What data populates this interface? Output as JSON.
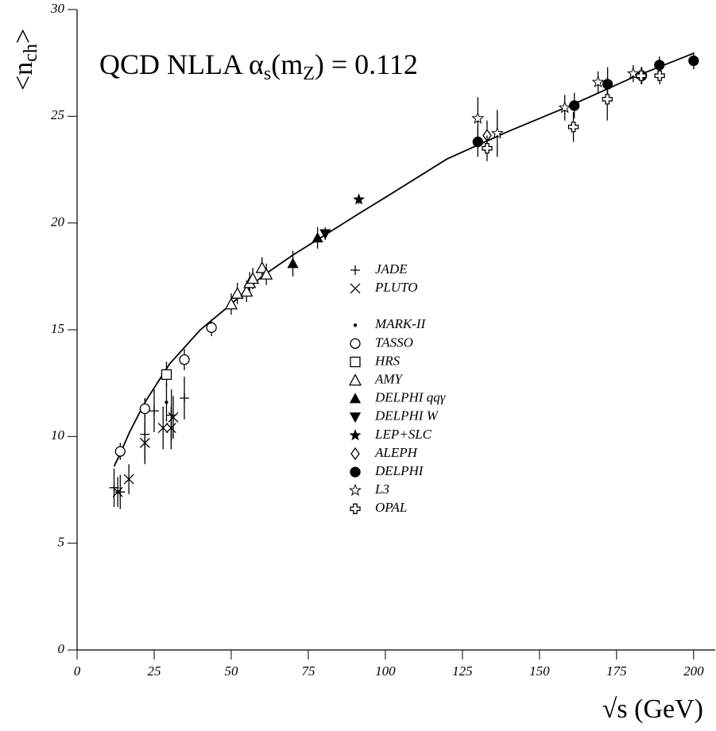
{
  "chart_data": {
    "type": "scatter",
    "annotation": [
      "QCD NLLA α",
      "s",
      "(m",
      "Z",
      ") = 0.112"
    ],
    "y_label": [
      "<n",
      "ch",
      ">"
    ],
    "x_label": "√s (GeV)",
    "xlim": [
      0,
      207
    ],
    "ylim": [
      0,
      30
    ],
    "xticks": [
      0,
      25,
      50,
      75,
      100,
      125,
      150,
      175,
      200
    ],
    "yticks": [
      0,
      5,
      10,
      15,
      20,
      25,
      30
    ],
    "color": "#000000",
    "fit": {
      "x": [
        12,
        14,
        17,
        22,
        30,
        40,
        50,
        60,
        70,
        80,
        91,
        100,
        120,
        140,
        160,
        180,
        200
      ],
      "values": [
        8.6,
        9.2,
        10.2,
        11.6,
        13.4,
        15.0,
        16.2,
        17.5,
        18.5,
        19.4,
        20.4,
        21.2,
        23.0,
        24.3,
        25.5,
        26.8,
        27.95
      ]
    },
    "series": [
      {
        "name": "JADE",
        "marker": "plus",
        "x": [
          12,
          14,
          22,
          25,
          30.6,
          34.8
        ],
        "values": [
          7.6,
          7.4,
          10.1,
          11.2,
          11.0,
          11.8
        ],
        "errors": [
          0.9,
          0.8,
          1.2,
          1.0,
          1.2,
          1.0
        ]
      },
      {
        "name": "PLUTO",
        "marker": "cross",
        "x": [
          13.2,
          16.8,
          22,
          27.9,
          30.5,
          31.2
        ],
        "values": [
          7.4,
          8.0,
          9.7,
          10.4,
          10.4,
          10.9
        ],
        "errors": [
          0.7,
          0.7,
          1.0,
          1.0,
          1.0,
          1.0
        ]
      },
      {
        "name": "MARK-II",
        "marker": "dot",
        "x": [
          29
        ],
        "values": [
          11.6
        ],
        "errors": [
          0.9
        ]
      },
      {
        "name": "TASSO",
        "marker": "circle",
        "x": [
          14,
          22,
          34.8,
          43.6
        ],
        "values": [
          9.3,
          11.3,
          13.6,
          15.1
        ],
        "errors": [
          0.4,
          0.5,
          0.5,
          0.4
        ]
      },
      {
        "name": "HRS",
        "marker": "square",
        "x": [
          29
        ],
        "values": [
          12.9
        ],
        "errors": [
          0.6
        ]
      },
      {
        "name": "AMY",
        "marker": "triangle",
        "x": [
          50,
          52,
          55,
          56,
          57,
          60,
          61.4
        ],
        "values": [
          16.2,
          16.7,
          16.8,
          17.2,
          17.4,
          17.9,
          17.6
        ],
        "errors": [
          0.5,
          0.5,
          0.5,
          0.5,
          0.5,
          0.5,
          0.5
        ]
      },
      {
        "name": "DELPHI qqγ",
        "marker": "triangle-filled",
        "x": [
          70,
          78
        ],
        "values": [
          18.1,
          19.3
        ],
        "errors": [
          0.6,
          0.5
        ]
      },
      {
        "name": "DELPHI W",
        "marker": "triangle-down-filled",
        "x": [
          80.5
        ],
        "values": [
          19.5
        ],
        "errors": [
          0.3
        ]
      },
      {
        "name": "LEP+SLC",
        "marker": "star-filled",
        "x": [
          91.4
        ],
        "values": [
          21.1
        ],
        "errors": [
          0.2
        ]
      },
      {
        "name": "ALEPH",
        "marker": "diamond",
        "x": [
          133
        ],
        "values": [
          24.1
        ],
        "errors": [
          0.7
        ]
      },
      {
        "name": "DELPHI",
        "marker": "circle-filled",
        "x": [
          130,
          161.3,
          172.1,
          183.2,
          188.9,
          200
        ],
        "values": [
          23.8,
          25.5,
          26.5,
          26.9,
          27.4,
          27.6
        ],
        "errors": [
          0.7,
          0.6,
          0.8,
          0.4,
          0.4,
          0.4
        ]
      },
      {
        "name": "L3",
        "marker": "star",
        "x": [
          130,
          136.3,
          158.2,
          169,
          180.4
        ],
        "values": [
          24.9,
          24.2,
          25.4,
          26.6,
          27.0
        ],
        "errors": [
          1.0,
          1.1,
          0.6,
          0.5,
          0.4
        ]
      },
      {
        "name": "OPAL",
        "marker": "open-cross",
        "x": [
          133,
          161,
          172,
          183,
          189
        ],
        "values": [
          23.5,
          24.5,
          25.8,
          26.9,
          26.9
        ],
        "errors": [
          0.6,
          0.7,
          1.0,
          0.4,
          0.4
        ]
      }
    ]
  }
}
